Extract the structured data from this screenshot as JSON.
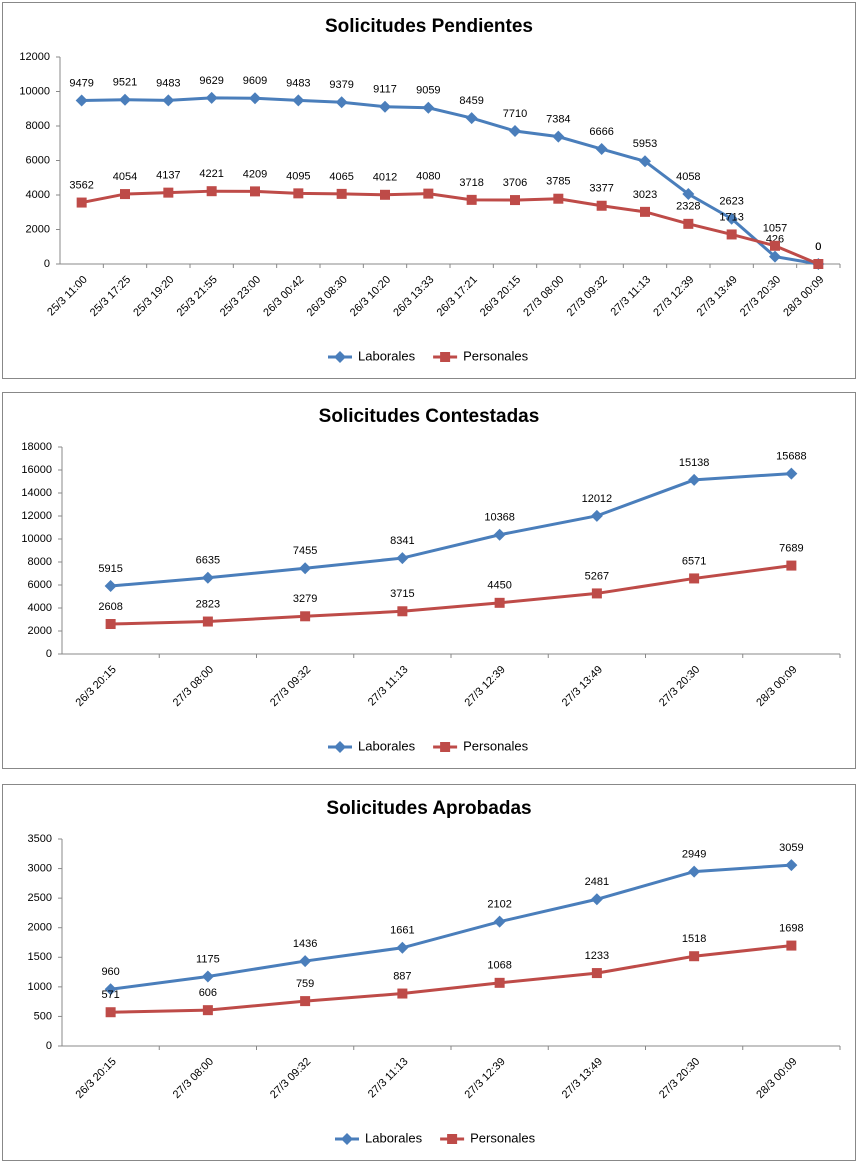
{
  "chart_data": [
    {
      "type": "line",
      "title": "Solicitudes Pendientes",
      "categories": [
        "25/3 11:00",
        "25/3 17:25",
        "25/3 19:20",
        "25/3 21:55",
        "25/3 23:00",
        "26/3 00:42",
        "26/3 08:30",
        "26/3 10:20",
        "26/3 13:33",
        "26/3 17:21",
        "26/3 20:15",
        "27/3 08:00",
        "27/3 09:32",
        "27/3 11:13",
        "27/3 12:39",
        "27/3 13:49",
        "27/3 20:30",
        "28/3 00:09"
      ],
      "series": [
        {
          "name": "Laborales",
          "color": "#4a7ebb",
          "marker": "diamond",
          "values": [
            9479,
            9521,
            9483,
            9629,
            9609,
            9483,
            9379,
            9117,
            9059,
            8459,
            7710,
            7384,
            6666,
            5953,
            4058,
            2623,
            426,
            0
          ]
        },
        {
          "name": "Personales",
          "color": "#be4b48",
          "marker": "square",
          "values": [
            3562,
            4054,
            4137,
            4221,
            4209,
            4095,
            4065,
            4012,
            4080,
            3718,
            3706,
            3785,
            3377,
            3023,
            2328,
            1713,
            1057,
            0
          ]
        }
      ],
      "ylim": [
        0,
        12000
      ],
      "yticks": [
        0,
        2000,
        4000,
        6000,
        8000,
        10000,
        12000
      ],
      "grid": false,
      "legend": "bottom"
    },
    {
      "type": "line",
      "title": "Solicitudes Contestadas",
      "categories": [
        "26/3 20:15",
        "27/3 08:00",
        "27/3 09:32",
        "27/3 11:13",
        "27/3 12:39",
        "27/3 13:49",
        "27/3 20:30",
        "28/3 00:09"
      ],
      "series": [
        {
          "name": "Laborales",
          "color": "#4a7ebb",
          "marker": "diamond",
          "values": [
            5915,
            6635,
            7455,
            8341,
            10368,
            12012,
            15138,
            15688
          ]
        },
        {
          "name": "Personales",
          "color": "#be4b48",
          "marker": "square",
          "values": [
            2608,
            2823,
            3279,
            3715,
            4450,
            5267,
            6571,
            7689
          ]
        }
      ],
      "ylim": [
        0,
        18000
      ],
      "yticks": [
        0,
        2000,
        4000,
        6000,
        8000,
        10000,
        12000,
        14000,
        16000,
        18000
      ],
      "grid": false,
      "legend": "bottom"
    },
    {
      "type": "line",
      "title": "Solicitudes Aprobadas",
      "categories": [
        "26/3 20:15",
        "27/3 08:00",
        "27/3 09:32",
        "27/3 11:13",
        "27/3 12:39",
        "27/3 13:49",
        "27/3 20:30",
        "28/3 00:09"
      ],
      "series": [
        {
          "name": "Laborales",
          "color": "#4a7ebb",
          "marker": "diamond",
          "values": [
            960,
            1175,
            1436,
            1661,
            2102,
            2481,
            2949,
            3059
          ]
        },
        {
          "name": "Personales",
          "color": "#be4b48",
          "marker": "square",
          "values": [
            571,
            606,
            759,
            887,
            1068,
            1233,
            1518,
            1698
          ]
        }
      ],
      "ylim": [
        0,
        3500
      ],
      "yticks": [
        0,
        500,
        1000,
        1500,
        2000,
        2500,
        3000,
        3500
      ],
      "grid": false,
      "legend": "bottom"
    }
  ]
}
